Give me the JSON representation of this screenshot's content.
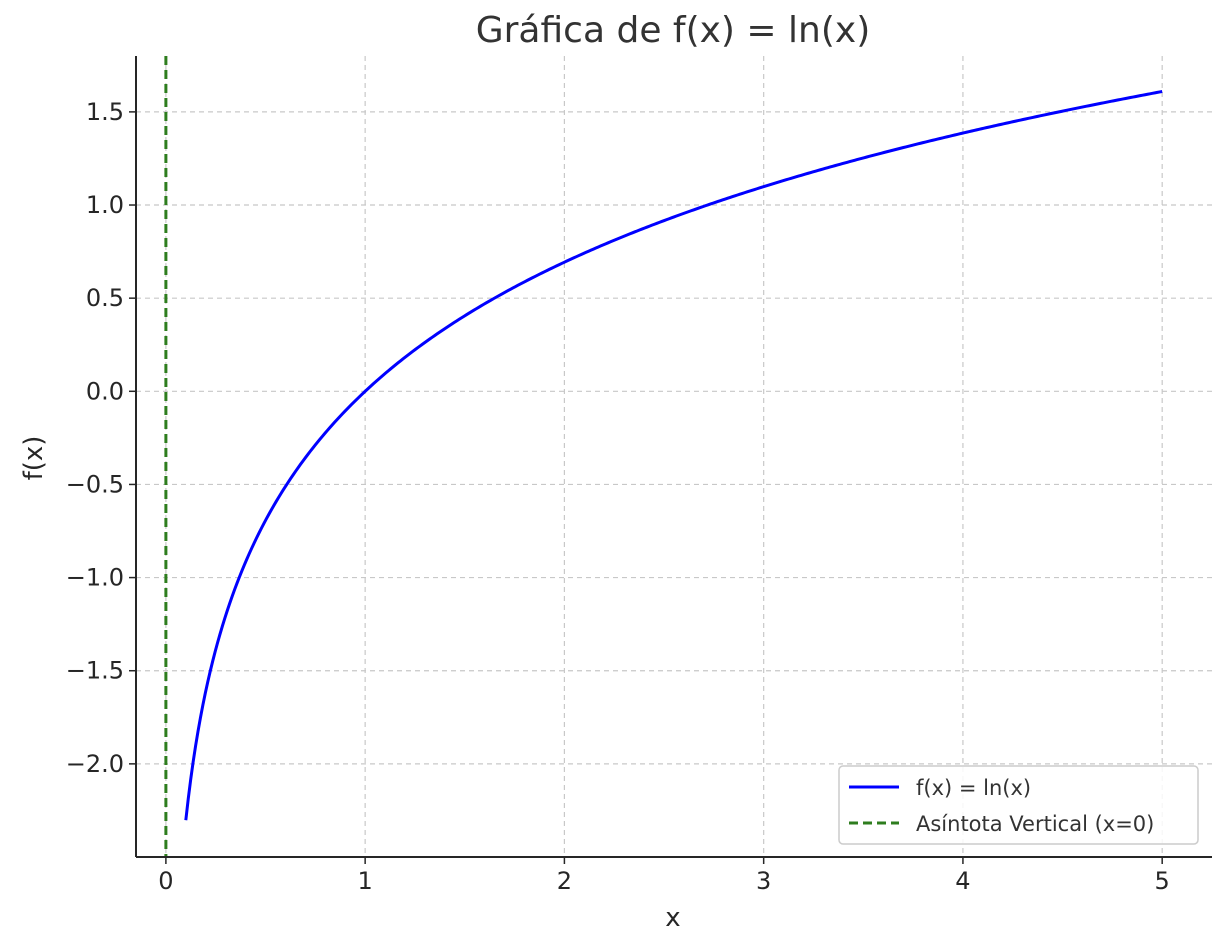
{
  "chart_data": {
    "type": "line",
    "title": "Gráfica de f(x) = ln(x)",
    "xlabel": "x",
    "ylabel": "f(x)",
    "xlim": [
      -0.15,
      5.25
    ],
    "ylim": [
      -2.5,
      1.8
    ],
    "x_ticks": [
      0,
      1,
      2,
      3,
      4,
      5
    ],
    "x_tick_labels": [
      "0",
      "1",
      "2",
      "3",
      "4",
      "5"
    ],
    "y_ticks": [
      -2.0,
      -1.5,
      -1.0,
      -0.5,
      0.0,
      0.5,
      1.0,
      1.5
    ],
    "y_tick_labels": [
      "−2.0",
      "−1.5",
      "−1.0",
      "−0.5",
      "0.0",
      "0.5",
      "1.0",
      "1.5"
    ],
    "grid": true,
    "legend_position": "lower-right",
    "series": [
      {
        "name": "f(x) = ln(x)",
        "function": "ln(x)",
        "x_range": [
          0.1,
          5
        ],
        "color": "#0000ff",
        "style": "solid"
      },
      {
        "name": "Asíntota Vertical (x=0)",
        "x_value": 0,
        "color": "#2e7d1e",
        "style": "dashed"
      }
    ]
  }
}
